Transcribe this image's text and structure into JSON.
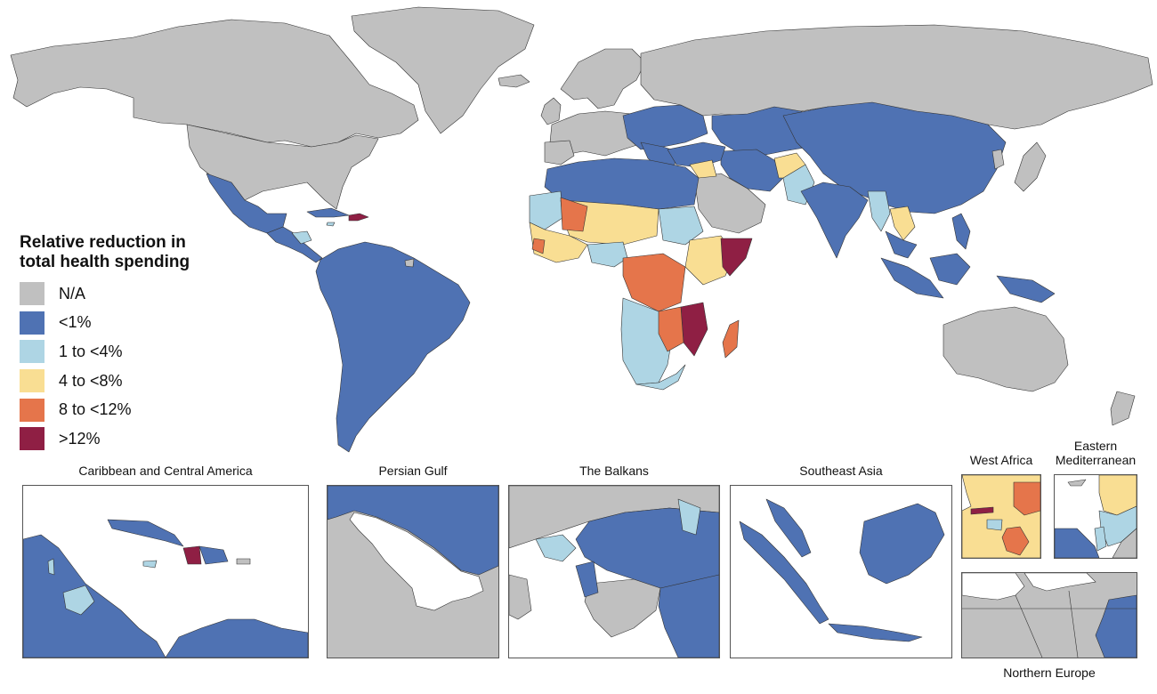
{
  "legend": {
    "title": "Relative reduction in total health spending",
    "items": [
      {
        "label": "N/A",
        "color": "#c0c0c0"
      },
      {
        "label": "<1%",
        "color": "#4f72b3"
      },
      {
        "label": "1 to <4%",
        "color": "#aed5e4"
      },
      {
        "label": "4 to <8%",
        "color": "#f9de93"
      },
      {
        "label": "8 to <12%",
        "color": "#e5754b"
      },
      {
        "label": ">12%",
        "color": "#8f1f44"
      }
    ]
  },
  "insets": {
    "caribbean": "Caribbean and Central America",
    "persian_gulf": "Persian Gulf",
    "balkans": "The Balkans",
    "southeast_asia": "Southeast Asia",
    "west_africa": "West Africa",
    "eastern_med": "Eastern Mediterranean",
    "northern_europe": "Northern Europe"
  }
}
